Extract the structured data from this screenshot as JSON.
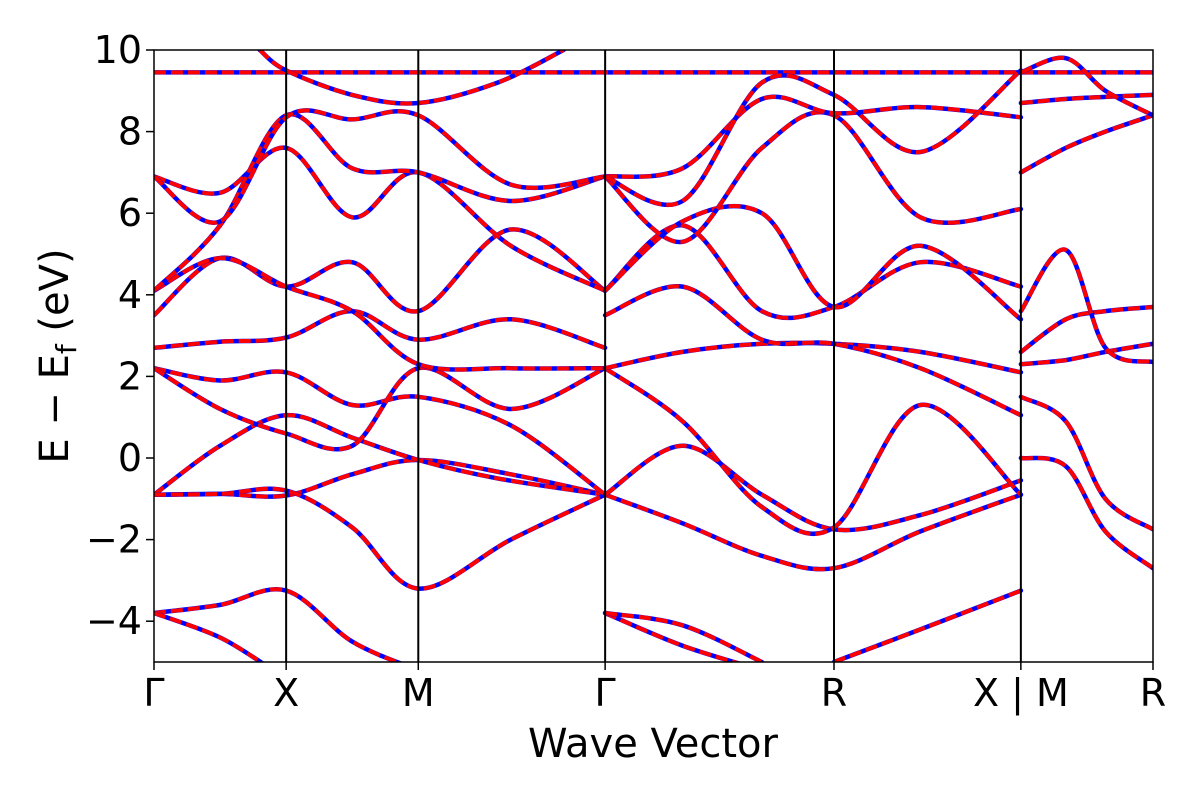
{
  "chart_data": {
    "type": "line",
    "title": "",
    "xlabel": "Wave Vector",
    "ylabel": {
      "base": "E − E",
      "sub": "f",
      "unit": " (eV)"
    },
    "ylim": [
      -5,
      10
    ],
    "yticks": [
      -4,
      -2,
      0,
      2,
      4,
      6,
      8,
      10
    ],
    "ytick_labels": [
      "−4",
      "−2",
      "0",
      "2",
      "4",
      "6",
      "8",
      "10"
    ],
    "xlim": [
      0,
      3.68
    ],
    "high_symmetry_points": [
      {
        "label": "Γ",
        "x": 0.0
      },
      {
        "label": "X",
        "x": 0.5
      },
      {
        "label": "M",
        "x": 1.0
      },
      {
        "label": "Γ",
        "x": 1.707
      },
      {
        "label": "R",
        "x": 2.573
      },
      {
        "label": "X | M",
        "x": 3.28
      },
      {
        "label": "R",
        "x": 3.78
      }
    ],
    "grid": false,
    "legend": "none",
    "series_styles": [
      {
        "color": "#ff0000",
        "style": "solid"
      },
      {
        "color": "#0000ff",
        "style": "dotted"
      }
    ],
    "bands": [
      [
        [
          0.0,
          -3.8
        ],
        [
          0.25,
          -3.6
        ],
        [
          0.5,
          -3.25
        ],
        [
          0.75,
          -4.5
        ],
        [
          1.0,
          -5.2
        ]
      ],
      [
        [
          0.0,
          -3.8
        ],
        [
          0.25,
          -4.4
        ],
        [
          0.45,
          -5.2
        ]
      ],
      [
        [
          0.0,
          -0.9
        ],
        [
          0.25,
          -0.88
        ],
        [
          0.5,
          -0.92
        ],
        [
          0.75,
          -0.4
        ],
        [
          1.0,
          -0.05
        ],
        [
          1.35,
          -0.4
        ],
        [
          1.707,
          -0.9
        ]
      ],
      [
        [
          0.0,
          -0.9
        ],
        [
          0.25,
          0.3
        ],
        [
          0.5,
          1.05
        ],
        [
          0.75,
          0.5
        ],
        [
          1.0,
          -0.05
        ],
        [
          1.3,
          -0.5
        ],
        [
          1.707,
          -0.9
        ]
      ],
      [
        [
          0.0,
          -0.9
        ],
        [
          0.25,
          -0.88
        ],
        [
          0.5,
          -0.8
        ],
        [
          0.75,
          -1.7
        ],
        [
          1.0,
          -3.2
        ],
        [
          1.35,
          -2.0
        ],
        [
          1.707,
          -0.9
        ]
      ],
      [
        [
          0.0,
          2.2
        ],
        [
          0.25,
          1.9
        ],
        [
          0.5,
          2.1
        ],
        [
          0.75,
          1.3
        ],
        [
          1.0,
          1.5
        ],
        [
          1.35,
          0.8
        ],
        [
          1.707,
          -0.9
        ]
      ],
      [
        [
          0.0,
          2.2
        ],
        [
          0.25,
          1.2
        ],
        [
          0.5,
          0.6
        ],
        [
          0.75,
          0.3
        ],
        [
          1.0,
          2.2
        ],
        [
          1.35,
          1.2
        ],
        [
          1.707,
          2.2
        ]
      ],
      [
        [
          0.0,
          2.7
        ],
        [
          0.25,
          2.85
        ],
        [
          0.5,
          2.95
        ],
        [
          0.75,
          3.6
        ],
        [
          1.0,
          2.9
        ],
        [
          1.35,
          3.4
        ],
        [
          1.707,
          2.7
        ]
      ],
      [
        [
          0.0,
          3.5
        ],
        [
          0.25,
          4.9
        ],
        [
          0.5,
          4.2
        ],
        [
          0.75,
          4.8
        ],
        [
          1.0,
          3.6
        ],
        [
          1.35,
          5.6
        ],
        [
          1.707,
          4.1
        ]
      ],
      [
        [
          0.0,
          4.1
        ],
        [
          0.25,
          4.9
        ],
        [
          0.5,
          4.2
        ],
        [
          0.75,
          3.6
        ],
        [
          1.0,
          2.3
        ],
        [
          1.35,
          2.2
        ],
        [
          1.707,
          2.2
        ]
      ],
      [
        [
          0.0,
          6.9
        ],
        [
          0.25,
          6.5
        ],
        [
          0.5,
          7.6
        ],
        [
          0.75,
          5.9
        ],
        [
          1.0,
          7.0
        ],
        [
          1.35,
          5.2
        ],
        [
          1.707,
          4.1
        ]
      ],
      [
        [
          0.0,
          4.1
        ],
        [
          0.25,
          5.7
        ],
        [
          0.5,
          8.4
        ],
        [
          0.75,
          7.1
        ],
        [
          1.0,
          7.0
        ],
        [
          1.35,
          6.3
        ],
        [
          1.707,
          6.9
        ]
      ],
      [
        [
          0.0,
          6.9
        ],
        [
          0.25,
          5.8
        ],
        [
          0.5,
          8.35
        ],
        [
          0.75,
          8.3
        ],
        [
          1.0,
          8.4
        ],
        [
          1.35,
          6.7
        ],
        [
          1.707,
          6.9
        ]
      ],
      [
        [
          0.0,
          9.45
        ],
        [
          0.5,
          9.45
        ],
        [
          1.0,
          9.45
        ],
        [
          1.707,
          9.45
        ],
        [
          2.573,
          9.45
        ],
        [
          3.28,
          9.45
        ],
        [
          3.78,
          9.45
        ]
      ],
      [
        [
          0.4,
          10.0
        ],
        [
          0.5,
          9.5
        ],
        [
          0.75,
          8.9
        ],
        [
          1.0,
          8.7
        ],
        [
          1.3,
          9.2
        ],
        [
          1.55,
          10.0
        ]
      ],
      [
        [
          1.707,
          -0.9
        ],
        [
          2.0,
          -1.6
        ],
        [
          2.3,
          -2.4
        ],
        [
          2.573,
          -2.7
        ],
        [
          2.9,
          -1.8
        ],
        [
          3.28,
          -0.9
        ]
      ],
      [
        [
          1.707,
          -0.9
        ],
        [
          2.0,
          0.3
        ],
        [
          2.3,
          -0.9
        ],
        [
          2.573,
          -1.75
        ],
        [
          2.9,
          -1.4
        ],
        [
          3.28,
          -0.55
        ]
      ],
      [
        [
          1.707,
          2.2
        ],
        [
          2.0,
          0.9
        ],
        [
          2.3,
          -1.2
        ],
        [
          2.573,
          -1.7
        ],
        [
          2.9,
          1.3
        ],
        [
          3.28,
          -0.9
        ]
      ],
      [
        [
          1.707,
          2.2
        ],
        [
          2.0,
          2.6
        ],
        [
          2.3,
          2.8
        ],
        [
          2.573,
          2.8
        ],
        [
          2.9,
          2.6
        ],
        [
          3.28,
          2.1
        ]
      ],
      [
        [
          1.707,
          3.5
        ],
        [
          2.0,
          4.2
        ],
        [
          2.3,
          2.9
        ],
        [
          2.573,
          2.8
        ],
        [
          2.9,
          2.2
        ],
        [
          3.28,
          1.05
        ]
      ],
      [
        [
          1.707,
          4.1
        ],
        [
          2.0,
          5.7
        ],
        [
          2.3,
          3.6
        ],
        [
          2.573,
          3.7
        ],
        [
          2.9,
          4.8
        ],
        [
          3.28,
          4.2
        ]
      ],
      [
        [
          1.707,
          4.1
        ],
        [
          2.0,
          5.8
        ],
        [
          2.3,
          6.0
        ],
        [
          2.573,
          3.7
        ],
        [
          2.9,
          5.2
        ],
        [
          3.28,
          3.4
        ]
      ],
      [
        [
          1.707,
          6.9
        ],
        [
          2.0,
          5.3
        ],
        [
          2.3,
          7.6
        ],
        [
          2.573,
          8.4
        ],
        [
          2.9,
          5.9
        ],
        [
          3.28,
          6.1
        ]
      ],
      [
        [
          1.707,
          6.9
        ],
        [
          2.0,
          7.1
        ],
        [
          2.3,
          8.8
        ],
        [
          2.573,
          8.45
        ],
        [
          2.9,
          8.6
        ],
        [
          3.28,
          8.35
        ]
      ],
      [
        [
          1.707,
          6.9
        ],
        [
          2.0,
          6.3
        ],
        [
          2.3,
          9.2
        ],
        [
          2.573,
          8.9
        ],
        [
          2.9,
          7.5
        ],
        [
          3.28,
          9.5
        ]
      ],
      [
        [
          1.707,
          -3.8
        ],
        [
          2.0,
          -4.6
        ],
        [
          2.3,
          -5.2
        ]
      ],
      [
        [
          1.707,
          -3.8
        ],
        [
          2.0,
          -4.1
        ],
        [
          2.3,
          -5.0
        ]
      ],
      [
        [
          2.573,
          -5.0
        ],
        [
          2.9,
          -4.2
        ],
        [
          3.28,
          -3.25
        ]
      ],
      [
        [
          3.28,
          1.5
        ],
        [
          3.45,
          0.9
        ],
        [
          3.6,
          -1.0
        ],
        [
          3.78,
          -1.75
        ]
      ],
      [
        [
          3.28,
          0.0
        ],
        [
          3.45,
          -0.2
        ],
        [
          3.6,
          -1.8
        ],
        [
          3.78,
          -2.7
        ]
      ],
      [
        [
          3.28,
          2.3
        ],
        [
          3.45,
          2.4
        ],
        [
          3.6,
          2.6
        ],
        [
          3.78,
          2.8
        ]
      ],
      [
        [
          3.28,
          2.6
        ],
        [
          3.45,
          3.4
        ],
        [
          3.6,
          3.6
        ],
        [
          3.78,
          3.7
        ]
      ],
      [
        [
          3.28,
          3.6
        ],
        [
          3.45,
          5.1
        ],
        [
          3.6,
          2.7
        ],
        [
          3.78,
          2.35
        ]
      ],
      [
        [
          3.28,
          7.0
        ],
        [
          3.45,
          7.6
        ],
        [
          3.6,
          8.0
        ],
        [
          3.78,
          8.4
        ]
      ],
      [
        [
          3.28,
          8.7
        ],
        [
          3.45,
          8.8
        ],
        [
          3.6,
          8.85
        ],
        [
          3.78,
          8.9
        ]
      ],
      [
        [
          3.28,
          9.45
        ],
        [
          3.45,
          9.8
        ],
        [
          3.6,
          9.0
        ],
        [
          3.78,
          8.4
        ]
      ]
    ]
  }
}
